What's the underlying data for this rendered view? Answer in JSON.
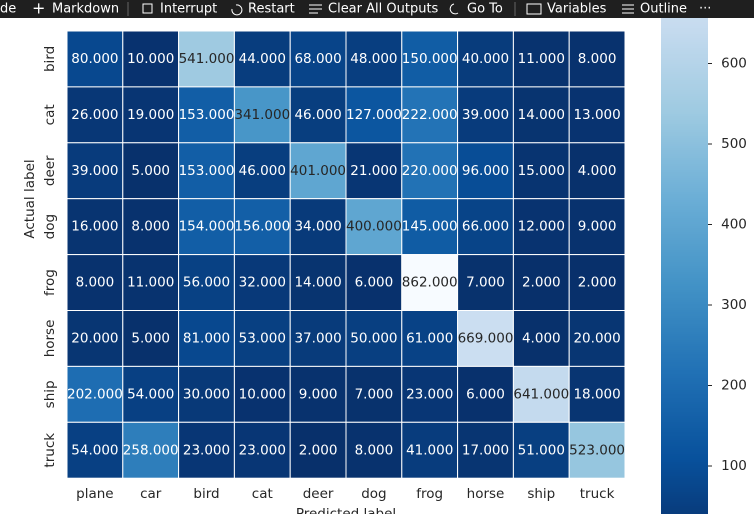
{
  "toolbar": {
    "items": [
      "de",
      "Markdown",
      "Interrupt",
      "Restart",
      "Clear All Outputs",
      "Go To",
      "Variables",
      "Outline",
      "···"
    ]
  },
  "chart_data": {
    "type": "heatmap",
    "xlabel": "Predicted label",
    "ylabel": "Actual label",
    "x_categories": [
      "plane",
      "car",
      "bird",
      "cat",
      "deer",
      "dog",
      "frog",
      "horse",
      "ship",
      "truck"
    ],
    "y_categories": [
      "bird",
      "cat",
      "deer",
      "dog",
      "frog",
      "horse",
      "ship",
      "truck"
    ],
    "values": [
      [
        80,
        10,
        541,
        44,
        68,
        48,
        150,
        40,
        11,
        8
      ],
      [
        26,
        19,
        153,
        341,
        46,
        127,
        222,
        39,
        14,
        13
      ],
      [
        39,
        5,
        153,
        46,
        401,
        21,
        220,
        96,
        15,
        4
      ],
      [
        16,
        8,
        154,
        156,
        34,
        400,
        145,
        66,
        12,
        9
      ],
      [
        8,
        11,
        56,
        32,
        14,
        6,
        862,
        7,
        2,
        2
      ],
      [
        20,
        5,
        81,
        53,
        37,
        50,
        61,
        669,
        4,
        20
      ],
      [
        202,
        54,
        30,
        10,
        9,
        7,
        23,
        6,
        641,
        18
      ],
      [
        54,
        258,
        23,
        23,
        2,
        8,
        41,
        17,
        51,
        523
      ]
    ],
    "value_labels": [
      [
        "80.000",
        "10.000",
        "541.000",
        "44.000",
        "68.000",
        "48.000",
        "150.000",
        "40.000",
        "11.000",
        "8.000"
      ],
      [
        "26.000",
        "19.000",
        "153.000",
        "341.000",
        "46.000",
        "127.000",
        "222.000",
        "39.000",
        "14.000",
        "13.000"
      ],
      [
        "39.000",
        "5.000",
        "153.000",
        "46.000",
        "401.000",
        "21.000",
        "220.000",
        "96.000",
        "15.000",
        "4.000"
      ],
      [
        "16.000",
        "8.000",
        "154.000",
        "156.000",
        "34.000",
        "400.000",
        "145.000",
        "66.000",
        "12.000",
        "9.000"
      ],
      [
        "8.000",
        "11.000",
        "56.000",
        "32.000",
        "14.000",
        "6.000",
        "862.000",
        "7.000",
        "2.000",
        "2.000"
      ],
      [
        "20.000",
        "5.000",
        "81.000",
        "53.000",
        "37.000",
        "50.000",
        "61.000",
        "669.000",
        "4.000",
        "20.000"
      ],
      [
        "202.000",
        "54.000",
        "30.000",
        "10.000",
        "9.000",
        "7.000",
        "23.000",
        "6.000",
        "641.000",
        "18.000"
      ],
      [
        "54.000",
        "258.000",
        "23.000",
        "23.000",
        "2.000",
        "8.000",
        "41.000",
        "17.000",
        "51.000",
        "523.000"
      ]
    ],
    "colormap": "Blues_r",
    "clim": [
      2,
      862
    ],
    "colorbar_ticks": [
      100,
      200,
      300,
      400,
      500,
      600
    ]
  }
}
